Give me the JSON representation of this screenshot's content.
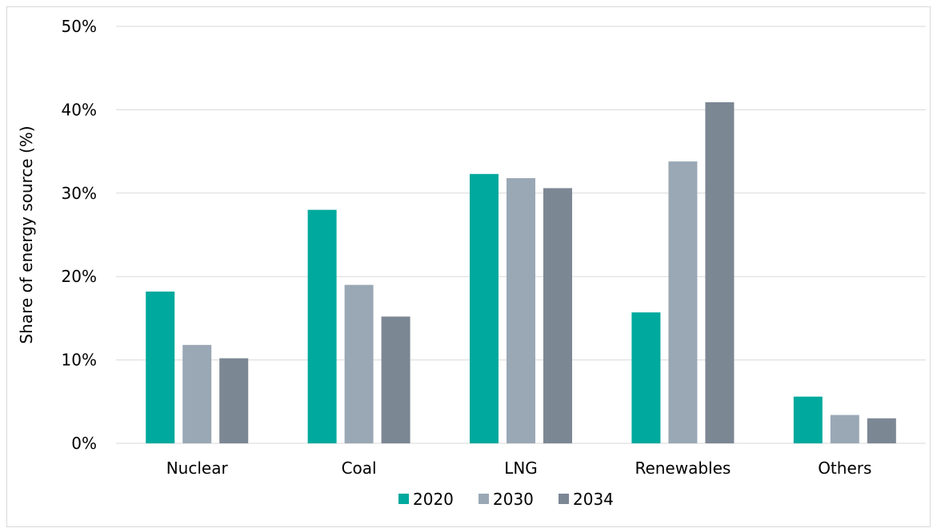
{
  "chart_data": {
    "type": "bar",
    "title": "",
    "xlabel": "",
    "ylabel": "Share of energy source (%)",
    "ylim": [
      0,
      50
    ],
    "yticks": [
      "0%",
      "10%",
      "20%",
      "30%",
      "40%",
      "50%"
    ],
    "ytick_values": [
      0,
      10,
      20,
      30,
      40,
      50
    ],
    "grid": true,
    "legend_position": "bottom",
    "categories": [
      "Nuclear",
      "Coal",
      "LNG",
      "Renewables",
      "Others"
    ],
    "series": [
      {
        "name": "2020",
        "color": "#00A99D",
        "values": [
          18.2,
          28.0,
          32.3,
          15.7,
          5.6
        ]
      },
      {
        "name": "2030",
        "color": "#9AA8B5",
        "values": [
          11.8,
          19.0,
          31.8,
          33.8,
          3.4
        ]
      },
      {
        "name": "2034",
        "color": "#7C8794",
        "values": [
          10.2,
          15.2,
          30.6,
          40.9,
          3.0
        ]
      }
    ]
  }
}
